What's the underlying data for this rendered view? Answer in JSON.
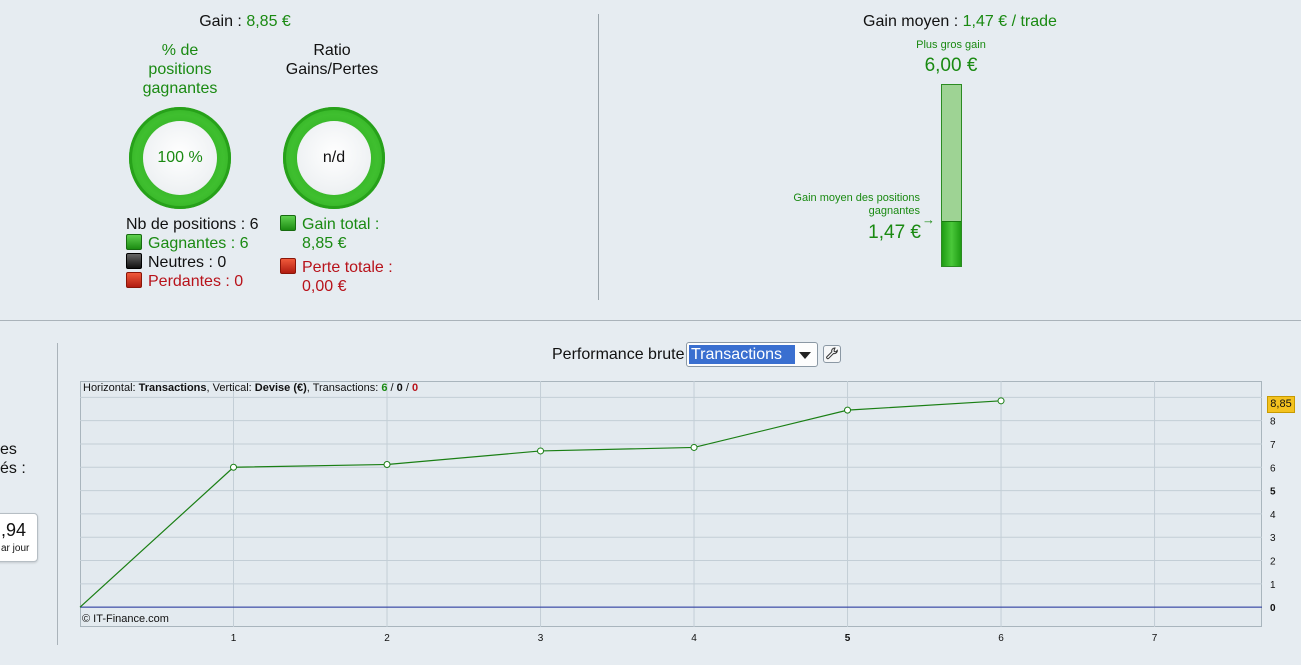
{
  "left_summary": {
    "gain_label": "Gain :",
    "gain_value": "8,85 €",
    "pct_win_label": [
      "% de",
      "positions",
      "gagnantes"
    ],
    "pct_win_value": "100 %",
    "ratio_label": [
      "Ratio",
      "Gains/Pertes"
    ],
    "ratio_value": "n/d",
    "nb_positions": "Nb de positions : 6",
    "gagnantes": "Gagnantes : 6",
    "neutres": "Neutres : 0",
    "perdantes": "Perdantes : 0",
    "gain_total": [
      "Gain total :",
      "8,85 €"
    ],
    "perte_totale": [
      "Perte totale :",
      "0,00 €"
    ]
  },
  "right_summary": {
    "gain_moyen_label": "Gain moyen :",
    "gain_moyen_value": "1,47 € / trade",
    "plus_gros_label": "Plus gros gain",
    "plus_gros_value": "6,00 €",
    "moyen_pos_label": [
      "Gain moyen des positions",
      "gagnantes"
    ],
    "moyen_pos_value": "1,47 €",
    "bar_fill_fraction": 0.245
  },
  "left_panel_fragments": {
    "line1": "es",
    "line2": "és :",
    "tip_value": ",94",
    "tip_label": "ar jour"
  },
  "performance": {
    "label": "Performance brute",
    "select_value": "Transactions",
    "header_prefix": "Horizontal: ",
    "header_h": "Transactions",
    "header_mid": ", Vertical: ",
    "header_v": "Devise (€)",
    "header_tx": ", Transactions: ",
    "tx_win": "6",
    "tx_sep1": " / ",
    "tx_neutral": "0",
    "tx_sep2": " / ",
    "tx_lose": "0",
    "copyright": "© IT-Finance.com",
    "last_value_label": "8,85"
  },
  "chart_data": {
    "type": "line",
    "x": [
      0,
      1,
      2,
      3,
      4,
      5,
      6
    ],
    "series": [
      {
        "values": [
          0,
          6.0,
          6.12,
          6.7,
          6.85,
          8.45,
          8.85
        ],
        "color": "#1a7f14"
      }
    ],
    "x_ticks": [
      "1",
      "2",
      "3",
      "4",
      "5",
      "6",
      "7"
    ],
    "x_tick_values": [
      1,
      2,
      3,
      4,
      5,
      6,
      7
    ],
    "y_ticks": [
      "0",
      "1",
      "2",
      "3",
      "4",
      "5",
      "6",
      "7",
      "8"
    ],
    "y_tick_values": [
      0,
      1,
      2,
      3,
      4,
      5,
      6,
      7,
      8
    ],
    "xlim": [
      0,
      7.7
    ],
    "ylim": [
      -0.85,
      9.7
    ],
    "grid": true,
    "zero_line_color": "#1f2f9c"
  },
  "colors": {
    "green": "#1a8a12",
    "red": "#b8121a",
    "background": "#e6ecf1"
  }
}
